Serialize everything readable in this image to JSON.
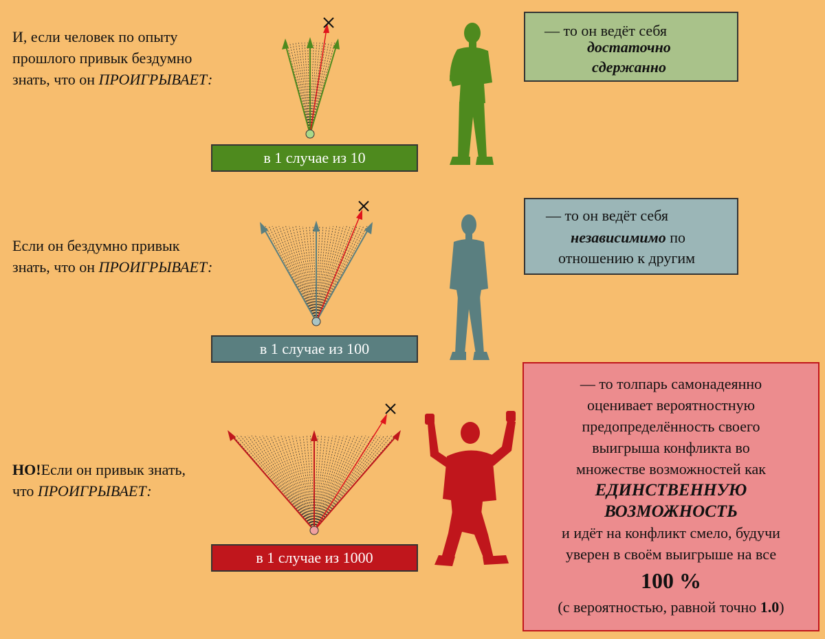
{
  "sections": [
    {
      "left_prefix": "",
      "left_lines": [
        "И, если человек по опыту",
        "прошлого привык бездумно",
        "знать, что он "
      ],
      "left_italic": "ПРОИГРЫВАЕТ:",
      "case_label": "в 1 случае из 10",
      "case_color": "#4e8a1e",
      "box": {
        "line1": "— то он ведёт себя",
        "bold_italic_1": "достаточно",
        "bold_italic_2": "сдержанно"
      },
      "box_color": "#a9c28a",
      "silhouette_color": "#4e8a1e",
      "silhouette_icon": "man-standing-arms-crossed-icon"
    },
    {
      "left_lines": [
        "Если он бездумно привык",
        "знать, что он "
      ],
      "left_italic": "ПРОИГРЫВАЕТ:",
      "case_label": "в 1 случае из 100",
      "case_color": "#5a7f80",
      "box": {
        "line1": "— то он ведёт себя",
        "bold_italic": "независимимо",
        "after_bold": " по",
        "line3": "отношению к другим"
      },
      "box_color": "#9bb6b7",
      "silhouette_color": "#5a7f80",
      "silhouette_icon": "man-standing-hands-in-pockets-icon"
    },
    {
      "left_bold": "НО!",
      "left_line1_rest": "Если он привык знать,",
      "left_line2_prefix": "что ",
      "left_italic": "ПРОИГРЫВАЕТ:",
      "case_label": "в 1 случае из 1000",
      "case_color": "#c0161c",
      "box": {
        "lines": [
          "— то толпарь самонадеянно",
          "оценивает вероятностную",
          "предопределённость своего",
          "выигрыша конфликта во",
          "множестве возможностей как"
        ],
        "bold_italic_1": "ЕДИНСТВЕННУЮ",
        "bold_italic_2": "ВОЗМОЖНОСТЬ",
        "lines2": [
          "и идёт на конфликт смело, будучи",
          "уверен в своём выигрыше на все"
        ],
        "big": "100 %",
        "last_prefix": "(с вероятностью, равной точно ",
        "last_bold": "1.0",
        "last_suffix": ")"
      },
      "box_color": "#ec8c8e",
      "box_border": "#c0161c",
      "silhouette_color": "#c0161c",
      "silhouette_icon": "man-celebrating-arms-raised-icon"
    }
  ],
  "colors": {
    "background": "#f7bd6e",
    "red_arrow": "#e0141c",
    "cross": "#111111"
  }
}
